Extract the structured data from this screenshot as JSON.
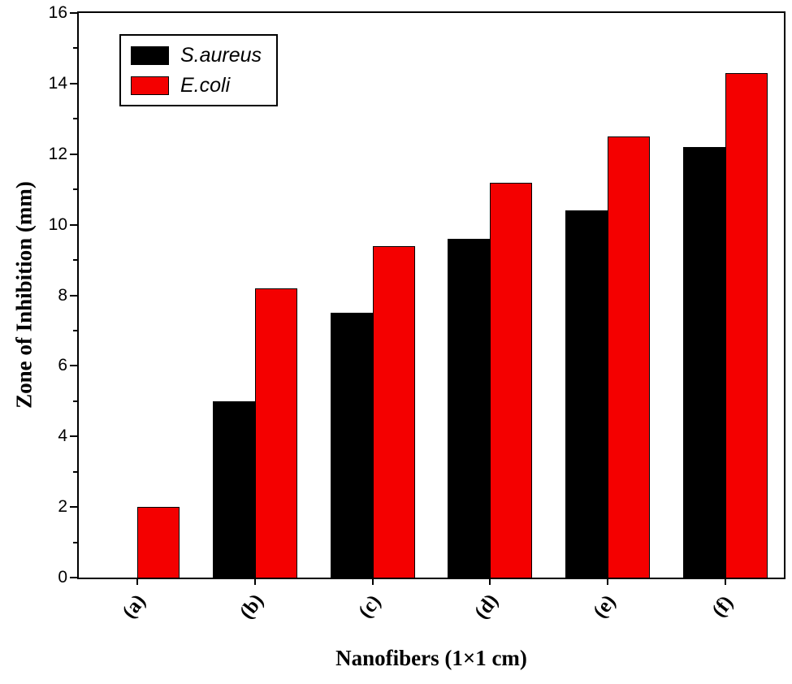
{
  "chart_data": {
    "type": "bar",
    "title": "",
    "xlabel": "Nanofibers (1×1 cm)",
    "ylabel": "Zone of Inhibition (mm)",
    "categories": [
      "(a)",
      "(b)",
      "(c)",
      "(d)",
      "(e)",
      "(f)"
    ],
    "series": [
      {
        "name": "S.aureus",
        "color": "#000000",
        "values": [
          0,
          5.0,
          7.5,
          9.6,
          10.4,
          12.2
        ]
      },
      {
        "name": "E.coli",
        "color": "#f40000",
        "values": [
          2.0,
          8.2,
          9.4,
          11.2,
          12.5,
          14.3
        ]
      }
    ],
    "ylim": [
      0,
      16
    ],
    "ytick_step": 2,
    "ytick_minor_step": 1,
    "grid": false,
    "legend_position": "top-left",
    "frame": "full-box",
    "axis_color": "#000000",
    "background_color": "#ffffff"
  }
}
